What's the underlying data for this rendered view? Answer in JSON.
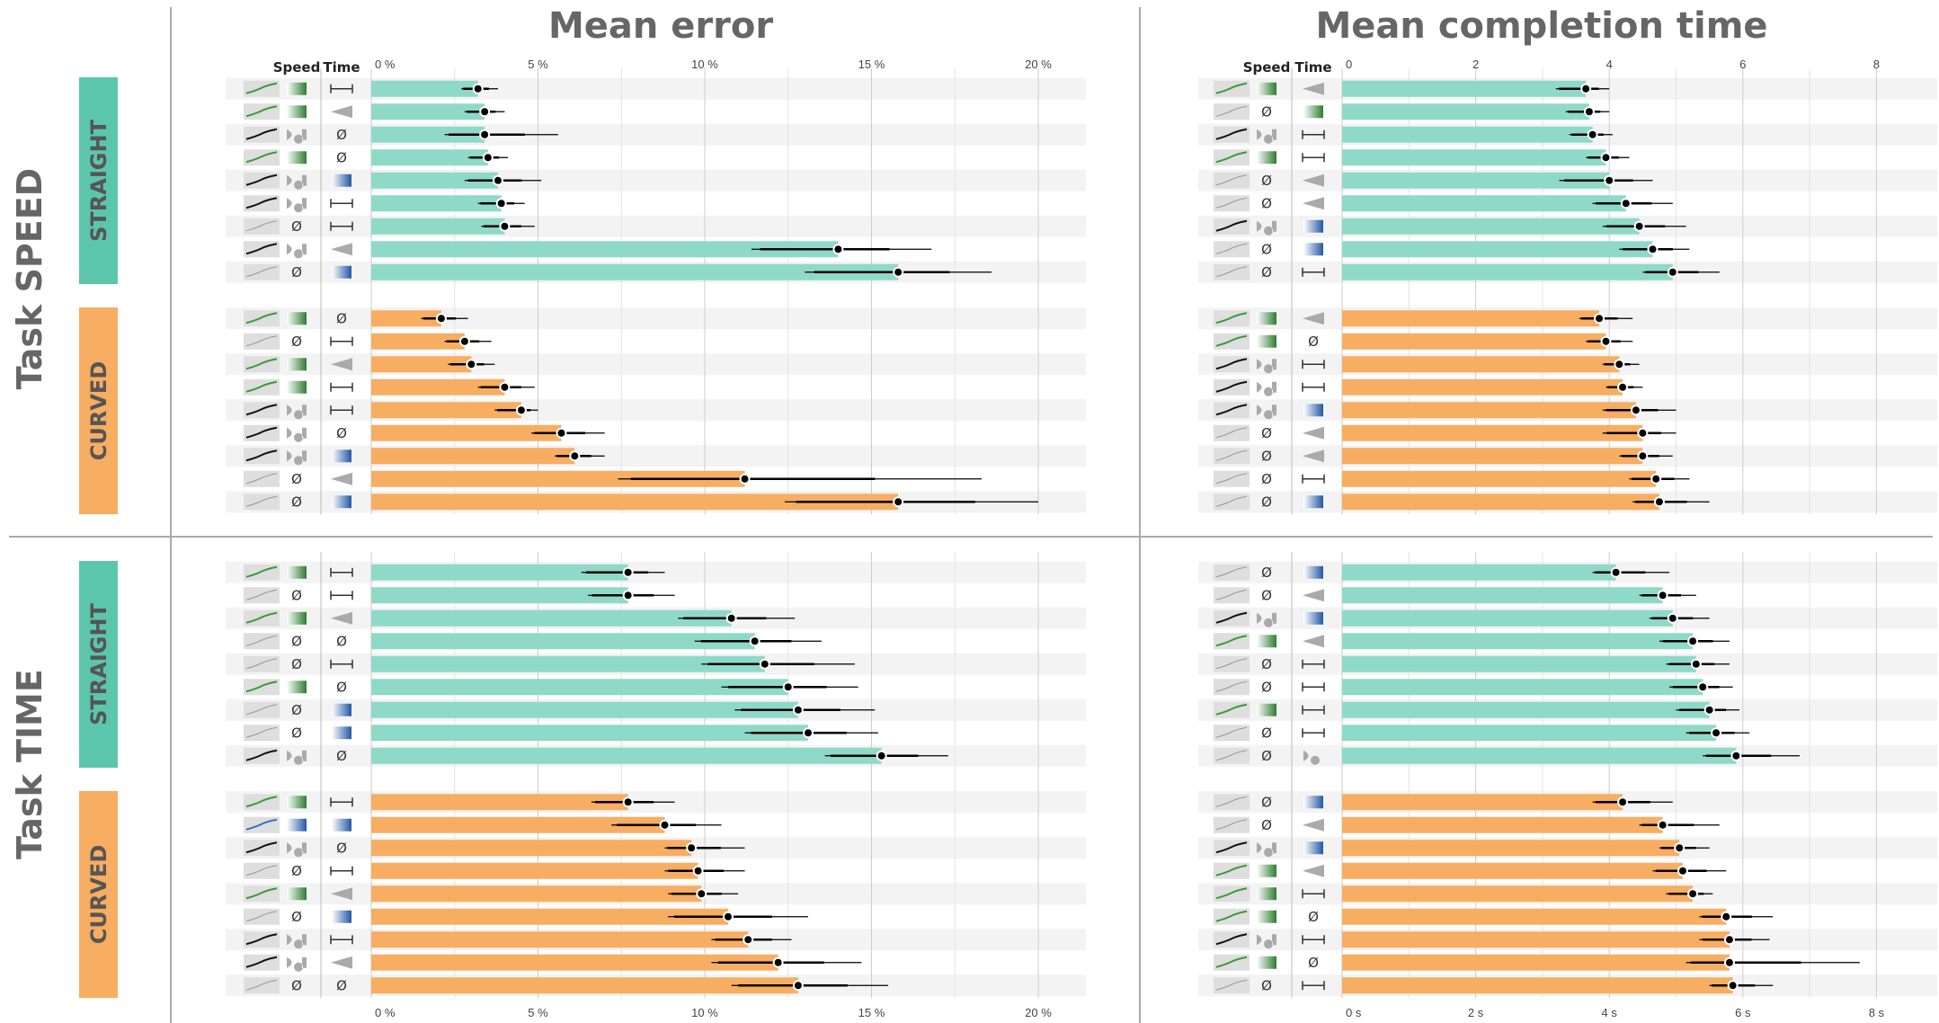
{
  "figure": {
    "columns": [
      "Mean error",
      "Mean completion time"
    ],
    "rows": [
      "Task SPEED",
      "Task TIME"
    ],
    "groups": [
      "STRAIGHT",
      "CURVED"
    ],
    "column_headers": {
      "speed": "Speed",
      "time": "Time"
    },
    "null_symbol": "Ø"
  },
  "colors": {
    "straight": "#8fd9c8",
    "curved": "#f7ad62",
    "straight_badge": "#5cc6ad",
    "curved_badge": "#f7ad62",
    "row_stripe": "#f3f3f3",
    "grid": "#cccccc",
    "divider": "#aaaaaa"
  },
  "chart_data": [
    {
      "type": "bar",
      "title": "Mean error",
      "row": "Task SPEED",
      "orientation": "horizontal",
      "xlim": [
        0,
        21.5
      ],
      "ticks": [
        0,
        5,
        10,
        15,
        20
      ],
      "tick_labels": [
        "0 %",
        "5 %",
        "10 %",
        "15 %",
        "20 %"
      ],
      "series": [
        {
          "name": "STRAIGHT",
          "values": [
            3.2,
            3.4,
            3.4,
            3.5,
            3.8,
            3.9,
            4.0,
            14.0,
            15.8
          ],
          "ci_low": [
            2.7,
            2.8,
            2.2,
            2.9,
            2.8,
            3.2,
            3.3,
            11.4,
            13.0
          ],
          "ci_high": [
            3.8,
            4.0,
            5.6,
            4.1,
            5.1,
            4.6,
            4.9,
            16.8,
            18.6
          ],
          "speed": [
            "green",
            "green",
            "gray",
            "green",
            "gray",
            "gray",
            "null",
            "gray",
            "null"
          ],
          "time": [
            "bar",
            "wedge",
            "null",
            "null",
            "blue",
            "bar",
            "bar",
            "wedge",
            "blue"
          ]
        },
        {
          "name": "CURVED",
          "values": [
            2.1,
            2.8,
            3.0,
            4.0,
            4.5,
            5.7,
            6.1,
            11.2,
            15.8
          ],
          "ci_low": [
            1.5,
            2.2,
            2.3,
            3.2,
            3.7,
            4.8,
            5.5,
            7.4,
            12.4
          ],
          "ci_high": [
            2.9,
            3.6,
            3.7,
            4.9,
            5.0,
            7.0,
            7.0,
            18.3,
            20.0
          ],
          "speed": [
            "green",
            "null",
            "green",
            "green",
            "gray",
            "gray",
            "gray",
            "null",
            "null"
          ],
          "time": [
            "null",
            "bar",
            "wedge",
            "bar",
            "bar",
            "null",
            "blue",
            "wedge",
            "blue"
          ]
        }
      ]
    },
    {
      "type": "bar",
      "title": "Mean completion time",
      "row": "Task SPEED",
      "orientation": "horizontal",
      "xlim": [
        0,
        8.6
      ],
      "ticks": [
        0,
        2,
        4,
        6,
        8
      ],
      "tick_labels": [
        "0",
        "2",
        "4",
        "6",
        "8"
      ],
      "series": [
        {
          "name": "STRAIGHT",
          "values": [
            3.65,
            3.7,
            3.75,
            3.95,
            4.0,
            4.25,
            4.45,
            4.65,
            4.95
          ],
          "ci_low": [
            3.2,
            3.35,
            3.4,
            3.65,
            3.25,
            3.75,
            3.9,
            4.15,
            4.5
          ],
          "ci_high": [
            4.0,
            4.0,
            4.05,
            4.3,
            4.65,
            4.95,
            5.15,
            5.2,
            5.65
          ],
          "speed": [
            "green",
            "null",
            "gray",
            "green",
            "null",
            "null",
            "gray",
            "null",
            "null"
          ],
          "time": [
            "wedge",
            "green-bar",
            "bar",
            "bar",
            "wedge",
            "wedge",
            "blue",
            "blue",
            "bar"
          ]
        },
        {
          "name": "CURVED",
          "values": [
            3.85,
            3.95,
            4.15,
            4.2,
            4.4,
            4.5,
            4.5,
            4.7,
            4.75
          ],
          "ci_low": [
            3.55,
            3.65,
            3.9,
            3.95,
            3.9,
            3.9,
            4.15,
            4.3,
            4.35
          ],
          "ci_high": [
            4.35,
            4.35,
            4.45,
            4.5,
            5.0,
            5.0,
            4.95,
            5.2,
            5.5
          ],
          "speed": [
            "green",
            "green",
            "gray",
            "gray",
            "gray",
            "null",
            "null",
            "null",
            "null"
          ],
          "time": [
            "wedge",
            "null",
            "bar",
            "bar",
            "blue",
            "wedge",
            "wedge",
            "bar",
            "blue"
          ]
        }
      ]
    },
    {
      "type": "bar",
      "title": "Mean error",
      "row": "Task TIME",
      "orientation": "horizontal",
      "xlim": [
        0,
        21.5
      ],
      "ticks": [
        0,
        5,
        10,
        15,
        20
      ],
      "tick_labels": [
        "0 %",
        "5 %",
        "10 %",
        "15 %",
        "20 %"
      ],
      "series": [
        {
          "name": "STRAIGHT",
          "values": [
            7.7,
            7.7,
            10.8,
            11.5,
            11.8,
            12.5,
            12.8,
            13.1,
            15.3
          ],
          "ci_low": [
            6.3,
            6.5,
            9.2,
            9.7,
            9.9,
            10.5,
            10.9,
            11.2,
            13.6
          ],
          "ci_high": [
            8.8,
            9.1,
            12.7,
            13.5,
            14.5,
            14.6,
            15.1,
            15.2,
            17.3
          ],
          "speed": [
            "green",
            "null",
            "green",
            "null",
            "null",
            "green",
            "null",
            "null",
            "gray"
          ],
          "time": [
            "bar",
            "bar",
            "wedge",
            "null",
            "bar",
            "null",
            "blue",
            "blue",
            "null"
          ]
        },
        {
          "name": "CURVED",
          "values": [
            7.7,
            8.8,
            9.6,
            9.8,
            9.9,
            10.7,
            11.3,
            12.2,
            12.8
          ],
          "ci_low": [
            6.6,
            7.2,
            8.8,
            8.8,
            8.9,
            8.9,
            10.2,
            10.2,
            10.8
          ],
          "ci_high": [
            9.1,
            10.5,
            11.2,
            11.2,
            11.0,
            13.1,
            12.6,
            14.7,
            15.5
          ],
          "speed": [
            "green",
            "blue",
            "gray",
            "null",
            "green",
            "null",
            "gray",
            "gray",
            "null"
          ],
          "time": [
            "bar",
            "blue",
            "null",
            "bar",
            "wedge",
            "blue",
            "bar",
            "wedge",
            "null"
          ]
        }
      ]
    },
    {
      "type": "bar",
      "title": "Mean completion time",
      "row": "Task TIME",
      "orientation": "horizontal",
      "xlim": [
        0,
        8.6
      ],
      "ticks": [
        0,
        2,
        4,
        6,
        8
      ],
      "tick_labels": [
        "0 s",
        "2 s",
        "4 s",
        "6 s",
        "8 s"
      ],
      "series": [
        {
          "name": "STRAIGHT",
          "values": [
            4.1,
            4.8,
            4.95,
            5.25,
            5.3,
            5.4,
            5.5,
            5.6,
            5.9
          ],
          "ci_low": [
            3.75,
            4.45,
            4.6,
            4.75,
            4.85,
            4.9,
            5.0,
            5.15,
            5.4
          ],
          "ci_high": [
            4.9,
            5.3,
            5.5,
            5.8,
            5.8,
            5.85,
            5.95,
            6.1,
            6.85
          ],
          "speed": [
            "null",
            "null",
            "gray",
            "green",
            "null",
            "null",
            "green",
            "null",
            "null"
          ],
          "time": [
            "blue",
            "wedge",
            "blue",
            "wedge",
            "bar",
            "bar",
            "bar",
            "bar",
            "gray"
          ]
        },
        {
          "name": "CURVED",
          "values": [
            4.2,
            4.8,
            5.05,
            5.1,
            5.25,
            5.75,
            5.8,
            5.8,
            5.85
          ],
          "ci_low": [
            3.75,
            4.45,
            4.75,
            4.65,
            4.85,
            5.35,
            5.35,
            5.15,
            5.5
          ],
          "ci_high": [
            4.95,
            5.65,
            5.5,
            5.75,
            5.55,
            6.45,
            6.4,
            7.75,
            6.45
          ],
          "speed": [
            "null",
            "null",
            "gray",
            "green",
            "green",
            "green",
            "gray",
            "green",
            "null"
          ],
          "time": [
            "blue",
            "wedge",
            "blue",
            "wedge",
            "bar",
            "null",
            "bar",
            "null",
            "bar"
          ]
        }
      ]
    }
  ]
}
